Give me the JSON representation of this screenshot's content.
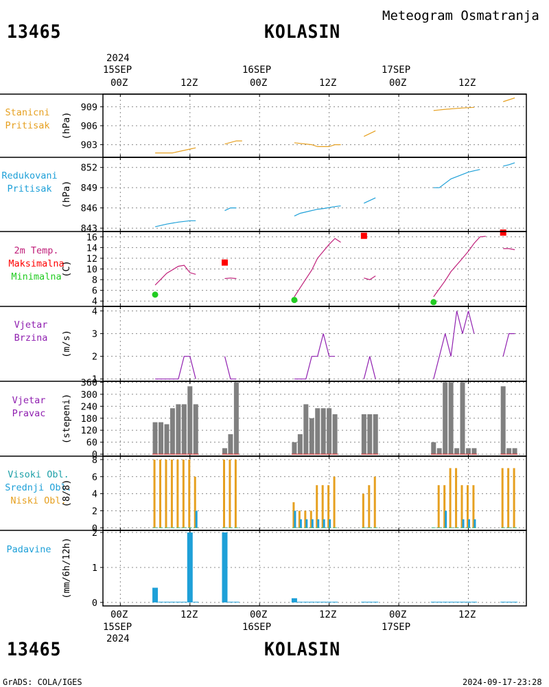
{
  "header": {
    "station_id": "13465",
    "station_name": "KOLASIN",
    "chart_title": "Meteogram Osmatranja"
  },
  "footer": {
    "station_id": "13465",
    "station_name": "KOLASIN",
    "credit": "GrADS: COLA/IGES",
    "timestamp": "2024-09-17-23:28"
  },
  "time_axis": {
    "year": "2024",
    "dates": [
      "15SEP",
      "16SEP",
      "17SEP"
    ],
    "tick_labels": [
      "00Z",
      "12Z",
      "00Z",
      "12Z",
      "00Z",
      "12Z"
    ],
    "tick_hours": [
      0,
      12,
      24,
      36,
      48,
      60
    ],
    "range_hours": [
      -3,
      70
    ]
  },
  "panels": {
    "station_pressure": {
      "label_lines": [
        "Stanicni",
        "Pritisak"
      ],
      "unit": "(hPa)",
      "ticks": [
        "903",
        "906",
        "909"
      ]
    },
    "reduced_pressure": {
      "label_lines": [
        "Redukovani",
        "Pritisak"
      ],
      "unit": "(hPa)",
      "ticks": [
        "843",
        "846",
        "849",
        "852"
      ]
    },
    "temperature": {
      "label_lines": [
        "2m Temp.",
        "Maksimalna",
        "Minimalna"
      ],
      "unit": "(C)",
      "ticks": [
        "4",
        "6",
        "8",
        "10",
        "12",
        "14",
        "16"
      ]
    },
    "wind_speed": {
      "label_lines": [
        "Vjetar",
        "Brzina"
      ],
      "unit": "(m/s)",
      "ticks": [
        "1",
        "2",
        "3",
        "4"
      ]
    },
    "wind_direction": {
      "label_lines": [
        "Vjetar",
        "Pravac"
      ],
      "unit": "(stepeni)",
      "ticks": [
        "0",
        "60",
        "120",
        "180",
        "240",
        "300",
        "360"
      ]
    },
    "clouds": {
      "label_lines": [
        "Visoki Obl.",
        "Srednji Obl.",
        "Niski Obl."
      ],
      "unit": "(8/8)",
      "ticks": [
        "0",
        "2",
        "4",
        "6",
        "8"
      ]
    },
    "precipitation": {
      "label_lines": [
        "Padavine"
      ],
      "unit": "(mm/6h/12h)",
      "ticks": [
        "0",
        "1",
        "2"
      ]
    }
  },
  "colors": {
    "station_pressure": "#e6a020",
    "reduced_pressure": "#1ea0d8",
    "temperature": "#c0207a",
    "temp_max": "#ff0000",
    "temp_min": "#22cc22",
    "wind": "#9020b0",
    "direction_bar": "#808080",
    "cloud_low": "#e6a020",
    "cloud_mid": "#1ea0d8",
    "cloud_high": "#22cc22",
    "precip": "#1ea0d8",
    "grid": "#888888"
  },
  "chart_data": [
    {
      "type": "line",
      "name_id": "station_pressure",
      "ylim": [
        901,
        911
      ],
      "ylabel": "(hPa)",
      "segments": [
        [
          [
            6,
            901.7
          ],
          [
            9,
            901.7
          ],
          [
            12,
            902.3
          ],
          [
            13,
            902.5
          ]
        ],
        [
          [
            18,
            903.1
          ],
          [
            20,
            903.6
          ],
          [
            21,
            903.6
          ]
        ],
        [
          [
            30,
            903.3
          ],
          [
            33,
            903
          ],
          [
            34,
            902.7
          ],
          [
            36,
            902.7
          ],
          [
            37,
            903
          ],
          [
            38,
            903
          ]
        ],
        [
          [
            42,
            904.3
          ],
          [
            44,
            905.2
          ]
        ],
        [
          [
            54,
            908.4
          ],
          [
            56,
            908.6
          ],
          [
            59,
            908.8
          ],
          [
            61,
            908.9
          ]
        ],
        [
          [
            66,
            909.8
          ],
          [
            68,
            910.4
          ]
        ]
      ]
    },
    {
      "type": "line",
      "name_id": "reduced_pressure",
      "ylim": [
        842.5,
        853.5
      ],
      "ylabel": "(hPa)",
      "segments": [
        [
          [
            6,
            843.2
          ],
          [
            8,
            843.6
          ],
          [
            10,
            843.9
          ],
          [
            12,
            844.1
          ],
          [
            13,
            844.1
          ]
        ],
        [
          [
            18,
            845.6
          ],
          [
            19,
            846
          ],
          [
            20,
            846
          ]
        ],
        [
          [
            30,
            844.8
          ],
          [
            31,
            845.2
          ],
          [
            32,
            845.4
          ],
          [
            34,
            845.8
          ],
          [
            35,
            845.9
          ],
          [
            37,
            846.2
          ],
          [
            38,
            846.3
          ]
        ],
        [
          [
            42,
            846.7
          ],
          [
            44,
            847.5
          ]
        ],
        [
          [
            54,
            849
          ],
          [
            55,
            849
          ],
          [
            57,
            850.3
          ],
          [
            60,
            851.3
          ],
          [
            61,
            851.5
          ],
          [
            62,
            851.7
          ]
        ],
        [
          [
            66,
            852.2
          ],
          [
            67,
            852.4
          ],
          [
            68,
            852.7
          ]
        ]
      ]
    },
    {
      "type": "line",
      "name_id": "temperature",
      "ylim": [
        3,
        17
      ],
      "ylabel": "(C)",
      "segments": [
        [
          [
            6,
            7
          ],
          [
            8,
            9.2
          ],
          [
            10,
            10.5
          ],
          [
            11,
            10.7
          ],
          [
            12,
            9.3
          ],
          [
            13,
            9
          ]
        ],
        [
          [
            18,
            8.2
          ],
          [
            19,
            8.3
          ],
          [
            20,
            8.2
          ]
        ],
        [
          [
            30,
            4.8
          ],
          [
            31,
            6.5
          ],
          [
            33,
            9.8
          ],
          [
            34,
            12
          ],
          [
            36,
            14.6
          ],
          [
            37,
            15.7
          ],
          [
            38,
            15
          ]
        ],
        [
          [
            42,
            8.3
          ],
          [
            43,
            8
          ],
          [
            44,
            8.7
          ]
        ],
        [
          [
            54,
            4.8
          ],
          [
            56,
            7.8
          ],
          [
            57,
            9.5
          ],
          [
            59,
            12
          ],
          [
            60,
            13.3
          ],
          [
            61,
            14.8
          ],
          [
            62,
            16
          ],
          [
            63,
            16.1
          ]
        ],
        [
          [
            66,
            13.8
          ],
          [
            67,
            13.8
          ],
          [
            68,
            13.6
          ]
        ]
      ],
      "max_points": [
        [
          18,
          11.2
        ],
        [
          42,
          16.2
        ],
        [
          66,
          16.8
        ]
      ],
      "min_points": [
        [
          6,
          5.2
        ],
        [
          30,
          4.2
        ],
        [
          54,
          3.8
        ]
      ]
    },
    {
      "type": "line",
      "name_id": "wind_speed",
      "ylim": [
        0.9,
        4.2
      ],
      "ylabel": "(m/s)",
      "segments": [
        [
          [
            6,
            1
          ],
          [
            10,
            1
          ],
          [
            11,
            2
          ],
          [
            12,
            2
          ],
          [
            13,
            1
          ]
        ],
        [
          [
            18,
            2
          ],
          [
            19,
            1
          ],
          [
            20,
            1
          ]
        ],
        [
          [
            30,
            1
          ],
          [
            32,
            1
          ],
          [
            33,
            2
          ],
          [
            34,
            2
          ],
          [
            35,
            3
          ],
          [
            36,
            2
          ],
          [
            37,
            2
          ]
        ],
        [
          [
            42,
            1
          ],
          [
            43,
            2
          ],
          [
            44,
            1
          ]
        ],
        [
          [
            54,
            1
          ],
          [
            56,
            3
          ],
          [
            57,
            2
          ],
          [
            58,
            4
          ],
          [
            59,
            3
          ],
          [
            60,
            4
          ],
          [
            61,
            3
          ]
        ],
        [
          [
            66,
            2
          ],
          [
            67,
            3
          ],
          [
            68,
            3
          ]
        ]
      ]
    },
    {
      "type": "bar",
      "name_id": "wind_direction",
      "ylim": [
        -10,
        365
      ],
      "ylabel": "(stepeni)",
      "x": [
        6,
        7,
        8,
        9,
        10,
        11,
        12,
        13,
        18,
        19,
        20,
        30,
        31,
        32,
        33,
        34,
        35,
        36,
        37,
        42,
        43,
        44,
        54,
        55,
        56,
        57,
        58,
        59,
        60,
        61,
        66,
        67,
        68
      ],
      "values": [
        160,
        160,
        150,
        230,
        250,
        250,
        340,
        250,
        30,
        100,
        360,
        60,
        100,
        250,
        180,
        230,
        230,
        230,
        200,
        200,
        200,
        200,
        60,
        30,
        360,
        360,
        30,
        360,
        30,
        30,
        340,
        30,
        30
      ]
    },
    {
      "type": "bar",
      "name_id": "clouds",
      "ylim": [
        -0.3,
        8.4
      ],
      "ylabel": "(8/8)",
      "x": [
        6,
        7,
        8,
        9,
        10,
        11,
        12,
        13,
        18,
        19,
        20,
        30,
        31,
        32,
        33,
        34,
        35,
        36,
        37,
        42,
        43,
        44,
        54,
        55,
        56,
        57,
        58,
        59,
        60,
        61,
        66,
        67,
        68
      ],
      "series": [
        {
          "id": "low",
          "values": [
            8,
            8,
            8,
            8,
            8,
            8,
            8,
            6,
            8,
            8,
            8,
            3,
            2,
            2,
            2,
            5,
            5,
            5,
            6,
            4,
            5,
            6,
            0,
            5,
            5,
            7,
            7,
            5,
            5,
            5,
            7,
            7,
            7
          ]
        },
        {
          "id": "mid",
          "values": [
            0,
            0,
            0,
            0,
            0,
            0,
            0,
            2,
            0,
            0,
            0,
            2,
            1,
            1,
            1,
            1,
            1,
            1,
            0,
            0,
            0,
            0,
            0,
            0,
            2,
            0,
            0,
            1,
            1,
            1,
            0,
            0,
            0
          ]
        },
        {
          "id": "high",
          "values": [
            0,
            0,
            0,
            0,
            0,
            0,
            0,
            0,
            0,
            0,
            0,
            0,
            0,
            0,
            0,
            0,
            0,
            0,
            0,
            0,
            0,
            0,
            0,
            0,
            0,
            0,
            0,
            0,
            0,
            0,
            0,
            0,
            0
          ]
        }
      ]
    },
    {
      "type": "bar",
      "name_id": "precipitation",
      "ylim": [
        -0.1,
        2.06
      ],
      "ylabel": "(mm/6h/12h)",
      "x": [
        6,
        7,
        8,
        9,
        10,
        11,
        12,
        13,
        18,
        19,
        20,
        30,
        31,
        32,
        33,
        34,
        35,
        36,
        37,
        42,
        43,
        44,
        54,
        55,
        56,
        57,
        58,
        59,
        60,
        61,
        66,
        67,
        68
      ],
      "values": [
        0.42,
        0.02,
        0.02,
        0.02,
        0.02,
        0.02,
        2,
        0.02,
        2,
        0.02,
        0.02,
        0.12,
        0.02,
        0.02,
        0.02,
        0.02,
        0.02,
        0.02,
        0.02,
        0.02,
        0.02,
        0.02,
        0.02,
        0.02,
        0.02,
        0.02,
        0.02,
        0.02,
        0.02,
        0.02,
        0.02,
        0.02,
        0.02
      ]
    }
  ]
}
